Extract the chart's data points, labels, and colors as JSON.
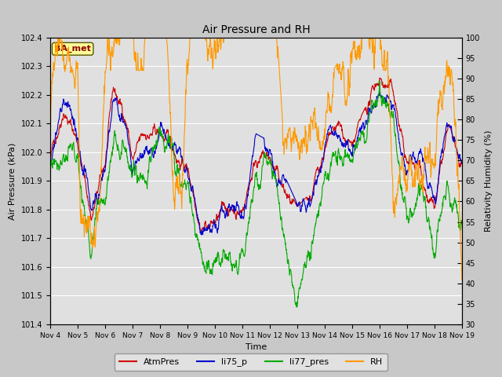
{
  "title": "Air Pressure and RH",
  "xlabel": "Time",
  "ylabel_left": "Air Pressure (kPa)",
  "ylabel_right": "Relativity Humidity (%)",
  "ylim_left": [
    101.4,
    102.4
  ],
  "ylim_right": [
    30,
    100
  ],
  "yticks_left": [
    101.4,
    101.5,
    101.6,
    101.7,
    101.8,
    101.9,
    102.0,
    102.1,
    102.2,
    102.3,
    102.4
  ],
  "yticks_right": [
    30,
    35,
    40,
    45,
    50,
    55,
    60,
    65,
    70,
    75,
    80,
    85,
    90,
    95,
    100
  ],
  "xtick_labels": [
    "Nov 4",
    "Nov 5",
    "Nov 6",
    "Nov 7",
    "Nov 8",
    "Nov 9",
    "Nov 10",
    "Nov 11",
    "Nov 12",
    "Nov 13",
    "Nov 14",
    "Nov 15",
    "Nov 16",
    "Nov 17",
    "Nov 18",
    "Nov 19"
  ],
  "station_label": "BA_met",
  "legend_entries": [
    "AtmPres",
    "li75_p",
    "li77_pres",
    "RH"
  ],
  "line_colors": [
    "#cc0000",
    "#0000cc",
    "#00aa00",
    "#ff9900"
  ],
  "fig_bg": "#c8c8c8",
  "plot_bg": "#e0e0e0",
  "n_points": 1500
}
